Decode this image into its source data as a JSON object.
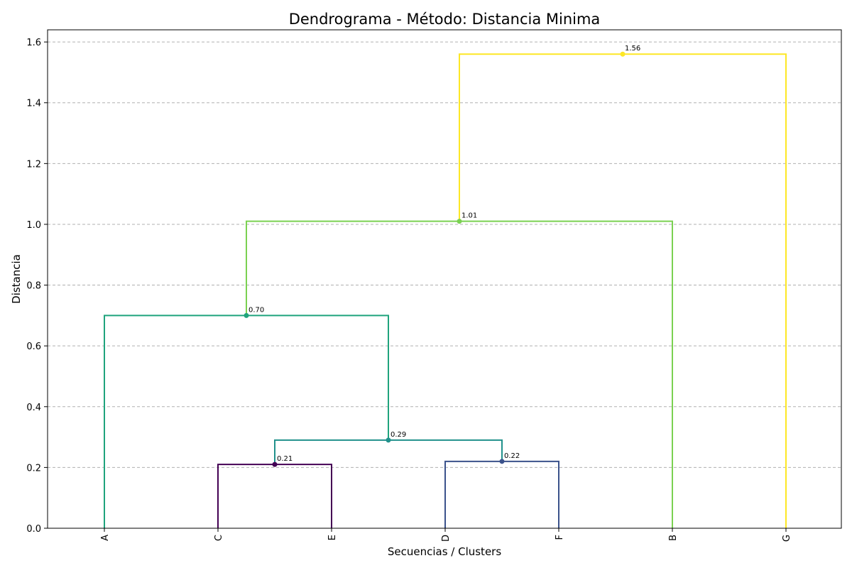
{
  "chart_data": {
    "type": "dendrogram",
    "title": "Dendrograma - Método: Distancia Minima",
    "xlabel": "Secuencias / Clusters",
    "ylabel": "Distancia",
    "leaves": [
      "A",
      "C",
      "E",
      "D",
      "F",
      "B",
      "G"
    ],
    "ylim": [
      0,
      1.64
    ],
    "yticks": [
      "0.0",
      "0.2",
      "0.4",
      "0.6",
      "0.8",
      "1.0",
      "1.2",
      "1.4",
      "1.6"
    ],
    "grid": "horizontal dashed",
    "merges": [
      {
        "left": "C",
        "right": "E",
        "height": 0.21,
        "label": "0.21",
        "color": "#440154"
      },
      {
        "left": "D",
        "right": "F",
        "height": 0.22,
        "label": "0.22",
        "color": "#3b528b"
      },
      {
        "left": "C+E",
        "right": "D+F",
        "height": 0.29,
        "label": "0.29",
        "color": "#21918c"
      },
      {
        "left": "A",
        "right": "C+E+D+F",
        "height": 0.7,
        "label": "0.70",
        "color": "#1fa37c"
      },
      {
        "left": "A+C+E+D+F",
        "right": "B",
        "height": 1.01,
        "label": "1.01",
        "color": "#7ad151"
      },
      {
        "left": "A+C+E+D+F+B",
        "right": "G",
        "height": 1.56,
        "label": "1.56",
        "color": "#fde725"
      }
    ]
  }
}
